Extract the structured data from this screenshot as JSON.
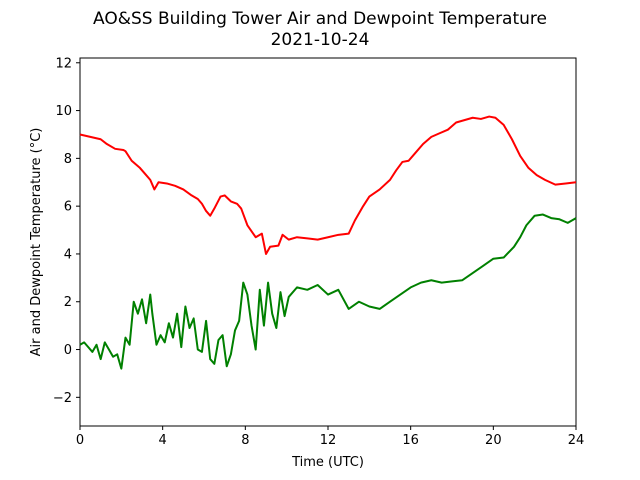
{
  "chart_data": {
    "type": "line",
    "title": "AO&SS Building Tower Air and Dewpoint Temperature",
    "subtitle": "2021-10-24",
    "xlabel": "Time (UTC)",
    "ylabel": "Air and Dewpoint Temperature (°C)",
    "xlim": [
      0,
      24
    ],
    "ylim": [
      -3.2,
      12.2
    ],
    "xticks": [
      0,
      4,
      8,
      12,
      16,
      20,
      24
    ],
    "yticks": [
      -2,
      0,
      2,
      4,
      6,
      8,
      10,
      12
    ],
    "grid": false,
    "series": [
      {
        "color": "#ff0000",
        "x": [
          0,
          0.5,
          1,
          1.3,
          1.7,
          2.1,
          2.2,
          2.5,
          2.9,
          3.2,
          3.4,
          3.6,
          3.8,
          4.2,
          4.6,
          5.0,
          5.4,
          5.7,
          5.9,
          6.1,
          6.3,
          6.5,
          6.8,
          7.0,
          7.3,
          7.6,
          7.8,
          8.1,
          8.5,
          8.8,
          9.0,
          9.2,
          9.6,
          9.8,
          10.1,
          10.5,
          11.0,
          11.5,
          12.0,
          12.5,
          13.0,
          13.3,
          13.7,
          14.0,
          14.5,
          15.0,
          15.3,
          15.6,
          15.9,
          16.2,
          16.6,
          17.0,
          17.4,
          17.8,
          18.2,
          18.6,
          19.0,
          19.4,
          19.8,
          20.1,
          20.5,
          20.9,
          21.3,
          21.7,
          22.1,
          22.5,
          23.0,
          23.5,
          24.0
        ],
        "y": [
          9.0,
          8.9,
          8.8,
          8.6,
          8.4,
          8.35,
          8.3,
          7.9,
          7.6,
          7.3,
          7.1,
          6.7,
          7.0,
          6.95,
          6.85,
          6.7,
          6.45,
          6.3,
          6.1,
          5.8,
          5.6,
          5.9,
          6.4,
          6.45,
          6.2,
          6.1,
          5.9,
          5.2,
          4.7,
          4.85,
          4.0,
          4.3,
          4.35,
          4.8,
          4.6,
          4.7,
          4.65,
          4.6,
          4.7,
          4.8,
          4.85,
          5.4,
          6.0,
          6.4,
          6.7,
          7.1,
          7.5,
          7.85,
          7.9,
          8.2,
          8.6,
          8.9,
          9.05,
          9.2,
          9.5,
          9.6,
          9.7,
          9.65,
          9.75,
          9.7,
          9.4,
          8.8,
          8.1,
          7.6,
          7.3,
          7.1,
          6.9,
          6.95,
          7.0
        ]
      },
      {
        "color": "#008000",
        "x": [
          0,
          0.2,
          0.4,
          0.6,
          0.8,
          1.0,
          1.2,
          1.4,
          1.6,
          1.8,
          2.0,
          2.2,
          2.4,
          2.6,
          2.8,
          3.0,
          3.2,
          3.4,
          3.5,
          3.7,
          3.9,
          4.1,
          4.3,
          4.5,
          4.7,
          4.9,
          5.1,
          5.3,
          5.5,
          5.7,
          5.9,
          6.1,
          6.3,
          6.5,
          6.7,
          6.9,
          7.1,
          7.3,
          7.5,
          7.7,
          7.9,
          8.1,
          8.3,
          8.5,
          8.7,
          8.9,
          9.1,
          9.3,
          9.5,
          9.7,
          9.9,
          10.1,
          10.5,
          11.0,
          11.5,
          12.0,
          12.5,
          13.0,
          13.5,
          14.0,
          14.5,
          15.0,
          15.5,
          16.0,
          16.5,
          17.0,
          17.5,
          18.0,
          18.5,
          19.0,
          19.5,
          20.0,
          20.5,
          21.0,
          21.3,
          21.6,
          22.0,
          22.4,
          22.8,
          23.2,
          23.6,
          24.0
        ],
        "y": [
          0.2,
          0.3,
          0.1,
          -0.1,
          0.2,
          -0.4,
          0.3,
          0.0,
          -0.3,
          -0.2,
          -0.8,
          0.5,
          0.2,
          2.0,
          1.5,
          2.1,
          1.1,
          2.3,
          1.5,
          0.2,
          0.6,
          0.3,
          1.1,
          0.5,
          1.5,
          0.1,
          1.8,
          0.9,
          1.3,
          0.0,
          -0.1,
          1.2,
          -0.4,
          -0.6,
          0.4,
          0.6,
          -0.7,
          -0.2,
          0.8,
          1.2,
          2.8,
          2.3,
          1.0,
          0.0,
          2.5,
          1.0,
          2.8,
          1.5,
          0.9,
          2.4,
          1.4,
          2.2,
          2.6,
          2.5,
          2.7,
          2.3,
          2.5,
          1.7,
          2.0,
          1.8,
          1.7,
          2.0,
          2.3,
          2.6,
          2.8,
          2.9,
          2.8,
          2.85,
          2.9,
          3.2,
          3.5,
          3.8,
          3.85,
          4.3,
          4.7,
          5.2,
          5.6,
          5.65,
          5.5,
          5.45,
          5.3,
          5.5
        ]
      }
    ]
  }
}
